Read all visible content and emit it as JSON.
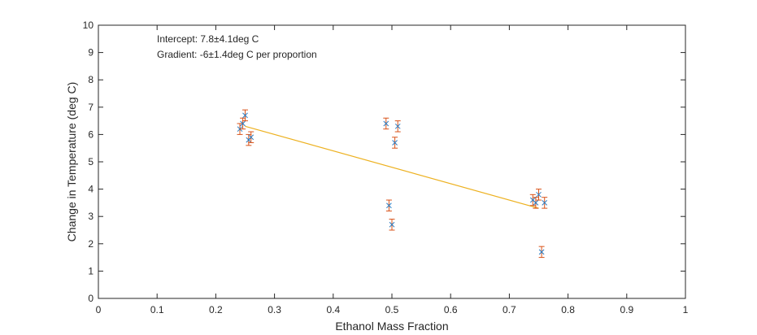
{
  "chart_data": {
    "type": "scatter",
    "xlabel": "Ethanol Mass Fraction",
    "ylabel": "Change in Temperature (deg C)",
    "xlim": [
      0,
      1
    ],
    "ylim": [
      0,
      10
    ],
    "xticks": [
      "0",
      "0.1",
      "0.2",
      "0.3",
      "0.4",
      "0.5",
      "0.6",
      "0.7",
      "0.8",
      "0.9",
      "1"
    ],
    "yticks": [
      "0",
      "1",
      "2",
      "3",
      "4",
      "5",
      "6",
      "7",
      "8",
      "9",
      "10"
    ],
    "grid": false,
    "annotations": [
      "Intercept: 7.8±4.1deg C",
      "Gradient: -6±1.4deg C per proportion"
    ],
    "points": [
      {
        "x": 0.241,
        "y": 6.2,
        "err": 0.2
      },
      {
        "x": 0.246,
        "y": 6.4,
        "err": 0.2
      },
      {
        "x": 0.25,
        "y": 6.7,
        "err": 0.2
      },
      {
        "x": 0.256,
        "y": 5.8,
        "err": 0.2
      },
      {
        "x": 0.26,
        "y": 5.9,
        "err": 0.2
      },
      {
        "x": 0.49,
        "y": 6.4,
        "err": 0.2
      },
      {
        "x": 0.495,
        "y": 3.4,
        "err": 0.2
      },
      {
        "x": 0.5,
        "y": 2.7,
        "err": 0.2
      },
      {
        "x": 0.505,
        "y": 5.7,
        "err": 0.2
      },
      {
        "x": 0.51,
        "y": 6.3,
        "err": 0.2
      },
      {
        "x": 0.74,
        "y": 3.6,
        "err": 0.2
      },
      {
        "x": 0.745,
        "y": 3.5,
        "err": 0.2
      },
      {
        "x": 0.75,
        "y": 3.8,
        "err": 0.2
      },
      {
        "x": 0.755,
        "y": 1.7,
        "err": 0.2
      },
      {
        "x": 0.76,
        "y": 3.5,
        "err": 0.2
      }
    ],
    "fit_line": {
      "x": [
        0.25,
        0.75
      ],
      "y": [
        6.3,
        3.3
      ]
    },
    "colors": {
      "marker": "#2d7cc0",
      "errorbar": "#d95319",
      "fit": "#edb120",
      "axis": "#262626"
    }
  }
}
